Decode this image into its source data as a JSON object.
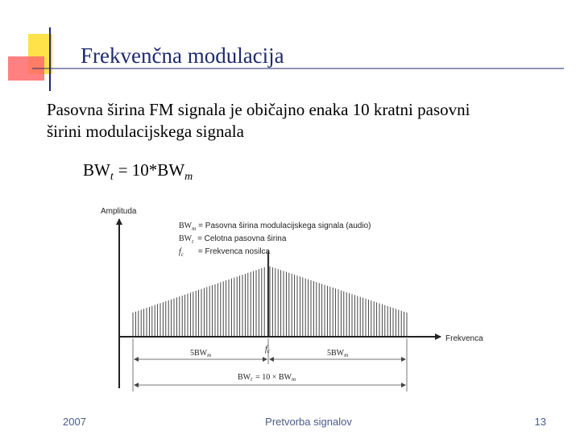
{
  "header": {
    "title": "Frekvenčna modulacija"
  },
  "body": {
    "lines": [
      "Pasovna širina FM signala je običajno enaka 10 kratni pasovni",
      "širini modulacijskega signala"
    ],
    "formula": {
      "lhs": "BW",
      "lhs_sub": "t",
      "middle": "= 10*BW",
      "rhs_sub": "m"
    }
  },
  "figure": {
    "y_axis_label": "Amplituda",
    "x_axis_label": "Frekvenca",
    "legend": [
      {
        "symbol": "BW",
        "sub": "m",
        "text": "= Pasovna širina modulacijskega signala (audio)"
      },
      {
        "symbol": "BW",
        "sub": "t",
        "text": "= Celotna pasovna širina"
      },
      {
        "symbol": "f",
        "sub": "c",
        "text": "= Frekvenca nosilca"
      }
    ],
    "dims": {
      "left": {
        "text": "5BW",
        "sub": "m"
      },
      "center": {
        "symbol": "f",
        "sub": "c"
      },
      "right": {
        "text": "5BW",
        "sub": "m"
      },
      "total": {
        "symbol": "BW",
        "sub": "t",
        "text": "= 10 × BW",
        "sub2": "m"
      }
    }
  },
  "footer": {
    "left": "2007",
    "center": "Pretvorba signalov",
    "right": "13"
  }
}
